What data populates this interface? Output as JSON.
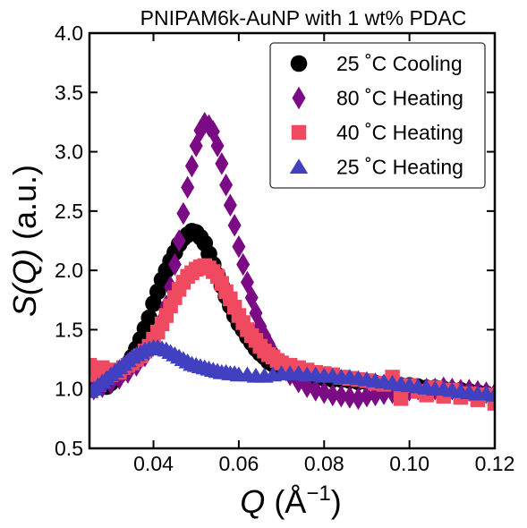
{
  "chart_data": {
    "type": "scatter",
    "title": "PNIPAM6k-AuNP with 1 wt% PDAC",
    "xlabel": {
      "sym": "Q",
      "rest": " (Å",
      "sup": "−1",
      "close": ")"
    },
    "ylabel": {
      "sym": "S(Q)",
      "rest": " (a.u.)"
    },
    "xlim": [
      0.025,
      0.12
    ],
    "ylim": [
      0.5,
      4.0
    ],
    "xticks": [
      0.04,
      0.06,
      0.08,
      0.1,
      0.12
    ],
    "xtick_labels": [
      "0.04",
      "0.06",
      "0.08",
      "0.10",
      "0.12"
    ],
    "yticks": [
      0.5,
      1.0,
      1.5,
      2.0,
      2.5,
      3.0,
      3.5,
      4.0
    ],
    "ytick_labels": [
      "0.5",
      "1.0",
      "1.5",
      "2.0",
      "2.5",
      "3.0",
      "3.5",
      "4.0"
    ],
    "grid": false,
    "legend_position": "top-right",
    "series": [
      {
        "name": "25 °C Cooling",
        "legend_label": "25  ˚C Cooling",
        "marker": "circle",
        "color": "#000000",
        "x": [
          0.026,
          0.027,
          0.028,
          0.029,
          0.03,
          0.031,
          0.032,
          0.033,
          0.034,
          0.035,
          0.036,
          0.037,
          0.038,
          0.039,
          0.04,
          0.041,
          0.042,
          0.043,
          0.044,
          0.045,
          0.046,
          0.047,
          0.048,
          0.049,
          0.05,
          0.051,
          0.052,
          0.053,
          0.054,
          0.055,
          0.056,
          0.057,
          0.058,
          0.059,
          0.06,
          0.061,
          0.062,
          0.063,
          0.064,
          0.065,
          0.066,
          0.067,
          0.068,
          0.069,
          0.07,
          0.072,
          0.074,
          0.076,
          0.078,
          0.08,
          0.082,
          0.084,
          0.086,
          0.088,
          0.09,
          0.092,
          0.094,
          0.096,
          0.098,
          0.1,
          0.102,
          0.104,
          0.106,
          0.108,
          0.11,
          0.112,
          0.114,
          0.116,
          0.118,
          0.12
        ],
        "y": [
          1.0,
          1.02,
          1.04,
          1.02,
          1.05,
          1.08,
          1.12,
          1.16,
          1.21,
          1.27,
          1.34,
          1.42,
          1.51,
          1.6,
          1.72,
          1.82,
          1.92,
          2.0,
          2.08,
          2.15,
          2.22,
          2.27,
          2.3,
          2.33,
          2.32,
          2.28,
          2.23,
          2.14,
          2.05,
          1.96,
          1.87,
          1.78,
          1.7,
          1.62,
          1.55,
          1.5,
          1.44,
          1.39,
          1.34,
          1.3,
          1.27,
          1.23,
          1.21,
          1.19,
          1.17,
          1.14,
          1.12,
          1.11,
          1.1,
          1.09,
          1.08,
          1.08,
          1.07,
          1.06,
          1.06,
          1.05,
          1.04,
          1.04,
          1.03,
          1.03,
          1.02,
          1.01,
          1.01,
          1.0,
          0.99,
          0.99,
          0.98,
          0.97,
          0.96,
          0.94
        ]
      },
      {
        "name": "80 °C Heating",
        "legend_label": "80  ˚C Heating",
        "marker": "diamond",
        "color": "#7b0a85",
        "x": [
          0.026,
          0.028,
          0.03,
          0.032,
          0.034,
          0.036,
          0.038,
          0.04,
          0.042,
          0.043,
          0.044,
          0.045,
          0.046,
          0.047,
          0.048,
          0.049,
          0.05,
          0.051,
          0.052,
          0.053,
          0.054,
          0.055,
          0.056,
          0.057,
          0.058,
          0.059,
          0.06,
          0.061,
          0.062,
          0.063,
          0.064,
          0.065,
          0.066,
          0.067,
          0.068,
          0.069,
          0.07,
          0.071,
          0.072,
          0.074,
          0.076,
          0.078,
          0.08,
          0.082,
          0.084,
          0.086,
          0.088,
          0.09,
          0.092,
          0.094,
          0.096,
          0.098,
          0.1,
          0.102,
          0.104,
          0.106,
          0.108,
          0.11,
          0.112,
          0.114,
          0.116,
          0.118,
          0.12
        ],
        "y": [
          1.0,
          1.02,
          1.05,
          1.09,
          1.14,
          1.2,
          1.28,
          1.4,
          1.58,
          1.7,
          1.86,
          2.05,
          2.25,
          2.48,
          2.7,
          2.88,
          3.05,
          3.18,
          3.24,
          3.22,
          3.17,
          3.05,
          2.9,
          2.72,
          2.55,
          2.38,
          2.2,
          2.05,
          1.9,
          1.77,
          1.64,
          1.53,
          1.45,
          1.38,
          1.31,
          1.25,
          1.21,
          1.16,
          1.12,
          1.06,
          1.02,
          0.99,
          0.97,
          0.95,
          0.94,
          0.93,
          0.92,
          0.94,
          0.95,
          0.96,
          0.97,
          0.98,
          0.99,
          1.0,
          1.0,
          1.0,
          1.01,
          1.0,
          0.99,
          0.99,
          0.98,
          0.97,
          0.96
        ]
      },
      {
        "name": "40 °C Heating",
        "legend_label": "40  ˚C Heating",
        "marker": "square",
        "color": "#f04a60",
        "x": [
          0.025,
          0.026,
          0.027,
          0.028,
          0.029,
          0.03,
          0.031,
          0.032,
          0.033,
          0.034,
          0.035,
          0.036,
          0.037,
          0.038,
          0.039,
          0.04,
          0.041,
          0.042,
          0.043,
          0.044,
          0.045,
          0.046,
          0.047,
          0.048,
          0.049,
          0.05,
          0.051,
          0.052,
          0.053,
          0.054,
          0.055,
          0.056,
          0.057,
          0.058,
          0.059,
          0.06,
          0.061,
          0.062,
          0.063,
          0.064,
          0.065,
          0.066,
          0.067,
          0.068,
          0.069,
          0.07,
          0.072,
          0.074,
          0.076,
          0.078,
          0.08,
          0.082,
          0.084,
          0.086,
          0.088,
          0.09,
          0.092,
          0.094,
          0.096,
          0.098,
          0.1,
          0.102,
          0.104,
          0.106,
          0.108,
          0.11,
          0.112,
          0.114,
          0.116,
          0.118,
          0.12
        ],
        "y": [
          1.2,
          1.16,
          1.12,
          1.18,
          1.15,
          1.12,
          1.16,
          1.14,
          1.18,
          1.2,
          1.22,
          1.25,
          1.28,
          1.32,
          1.36,
          1.42,
          1.48,
          1.55,
          1.62,
          1.7,
          1.77,
          1.84,
          1.9,
          1.95,
          1.98,
          2.01,
          2.03,
          2.04,
          2.02,
          1.99,
          1.95,
          1.89,
          1.82,
          1.76,
          1.69,
          1.62,
          1.56,
          1.5,
          1.45,
          1.41,
          1.36,
          1.32,
          1.29,
          1.27,
          1.24,
          1.22,
          1.2,
          1.18,
          1.16,
          1.14,
          1.13,
          1.12,
          1.1,
          1.09,
          1.08,
          1.07,
          1.05,
          1.04,
          1.1,
          0.92,
          1.03,
          0.98,
          0.95,
          1.01,
          0.94,
          0.99,
          0.93,
          0.96,
          0.91,
          0.95,
          0.88
        ]
      },
      {
        "name": "25 °C Heating",
        "legend_label": "25  ˚C Heating",
        "marker": "triangle",
        "color": "#4040c0",
        "x": [
          0.025,
          0.026,
          0.027,
          0.028,
          0.029,
          0.03,
          0.031,
          0.032,
          0.033,
          0.034,
          0.035,
          0.036,
          0.037,
          0.038,
          0.039,
          0.04,
          0.041,
          0.042,
          0.043,
          0.044,
          0.045,
          0.046,
          0.047,
          0.048,
          0.049,
          0.05,
          0.051,
          0.052,
          0.053,
          0.054,
          0.055,
          0.056,
          0.057,
          0.058,
          0.059,
          0.06,
          0.062,
          0.064,
          0.066,
          0.068,
          0.07,
          0.072,
          0.074,
          0.076,
          0.078,
          0.08,
          0.082,
          0.084,
          0.086,
          0.088,
          0.09,
          0.092,
          0.094,
          0.096,
          0.098,
          0.1,
          0.102,
          0.104,
          0.106,
          0.108,
          0.11,
          0.112,
          0.114,
          0.116,
          0.118,
          0.12
        ],
        "y": [
          0.98,
          1.0,
          1.03,
          1.06,
          1.09,
          1.12,
          1.15,
          1.18,
          1.21,
          1.24,
          1.27,
          1.29,
          1.31,
          1.33,
          1.34,
          1.35,
          1.35,
          1.34,
          1.33,
          1.31,
          1.29,
          1.27,
          1.25,
          1.23,
          1.21,
          1.2,
          1.19,
          1.18,
          1.17,
          1.16,
          1.15,
          1.14,
          1.14,
          1.13,
          1.13,
          1.12,
          1.12,
          1.11,
          1.11,
          1.12,
          1.13,
          1.13,
          1.13,
          1.12,
          1.12,
          1.11,
          1.11,
          1.1,
          1.1,
          1.09,
          1.08,
          1.07,
          1.06,
          1.05,
          1.04,
          1.03,
          1.02,
          1.01,
          1.0,
          1.0,
          0.99,
          0.98,
          0.97,
          0.96,
          0.96,
          0.95
        ]
      }
    ]
  }
}
